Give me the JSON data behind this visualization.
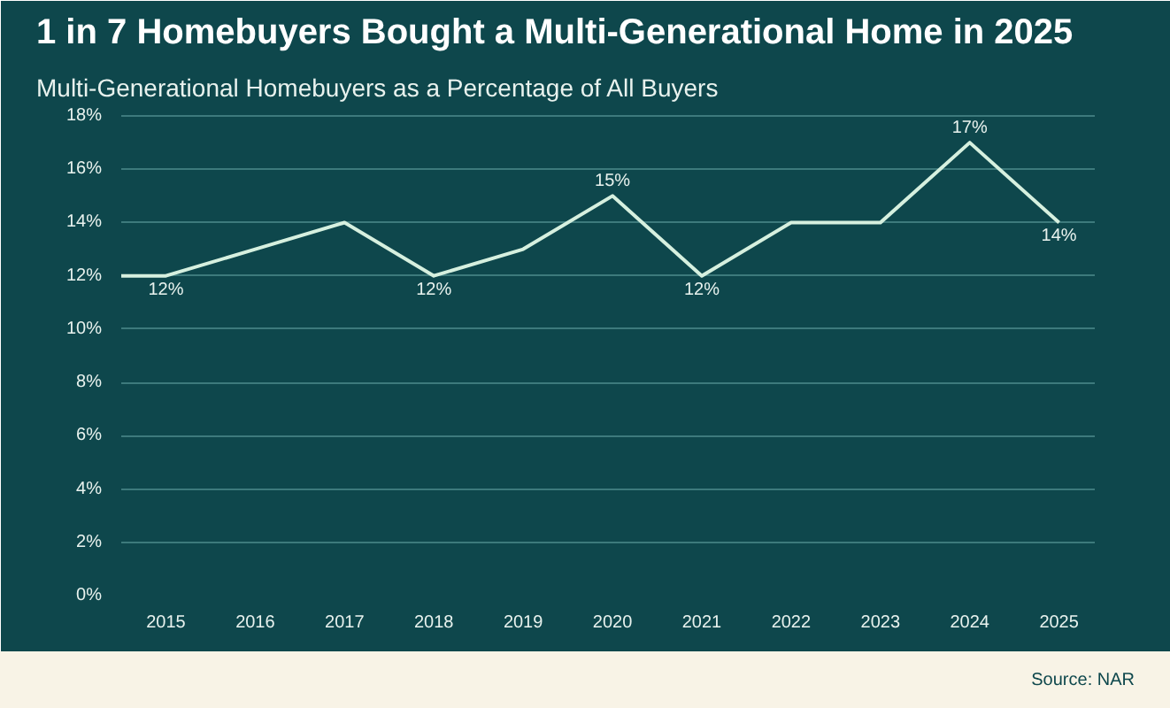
{
  "chart_data": {
    "type": "line",
    "title": "1 in 7 Homebuyers Bought a Multi-Generational Home in 2025",
    "subtitle": "Multi-Generational Homebuyers as a Percentage of All Buyers",
    "x": [
      2014.5,
      2015,
      2016,
      2017,
      2018,
      2019,
      2020,
      2021,
      2022,
      2023,
      2024,
      2025
    ],
    "series": [
      {
        "color": "#d6f0df",
        "values": [
          12,
          12,
          13,
          14,
          12,
          13,
          15,
          12,
          14,
          14,
          17,
          14
        ],
        "value_labels": [
          null,
          "12%",
          null,
          null,
          "12%",
          null,
          "15%",
          "12%",
          null,
          null,
          "17%",
          "14%"
        ]
      }
    ],
    "xlim": [
      2014.5,
      2025.4
    ],
    "xticks": [
      2015,
      2016,
      2017,
      2018,
      2019,
      2020,
      2021,
      2022,
      2023,
      2024,
      2025
    ],
    "ylim": [
      0,
      18.2
    ],
    "yticks": [
      {
        "value": 0,
        "label": "0%"
      },
      {
        "value": 2,
        "label": "2%"
      },
      {
        "value": 4,
        "label": "4%"
      },
      {
        "value": 6,
        "label": "6%"
      },
      {
        "value": 8,
        "label": "8%"
      },
      {
        "value": 10,
        "label": "10%"
      },
      {
        "value": 12,
        "label": "12%"
      },
      {
        "value": 14,
        "label": "14%"
      },
      {
        "value": 16,
        "label": "16%"
      },
      {
        "value": 18,
        "label": "18%"
      }
    ],
    "grid": "y",
    "marker": "none",
    "line_style": "solid",
    "annotations": [
      "Source: NAR"
    ]
  }
}
